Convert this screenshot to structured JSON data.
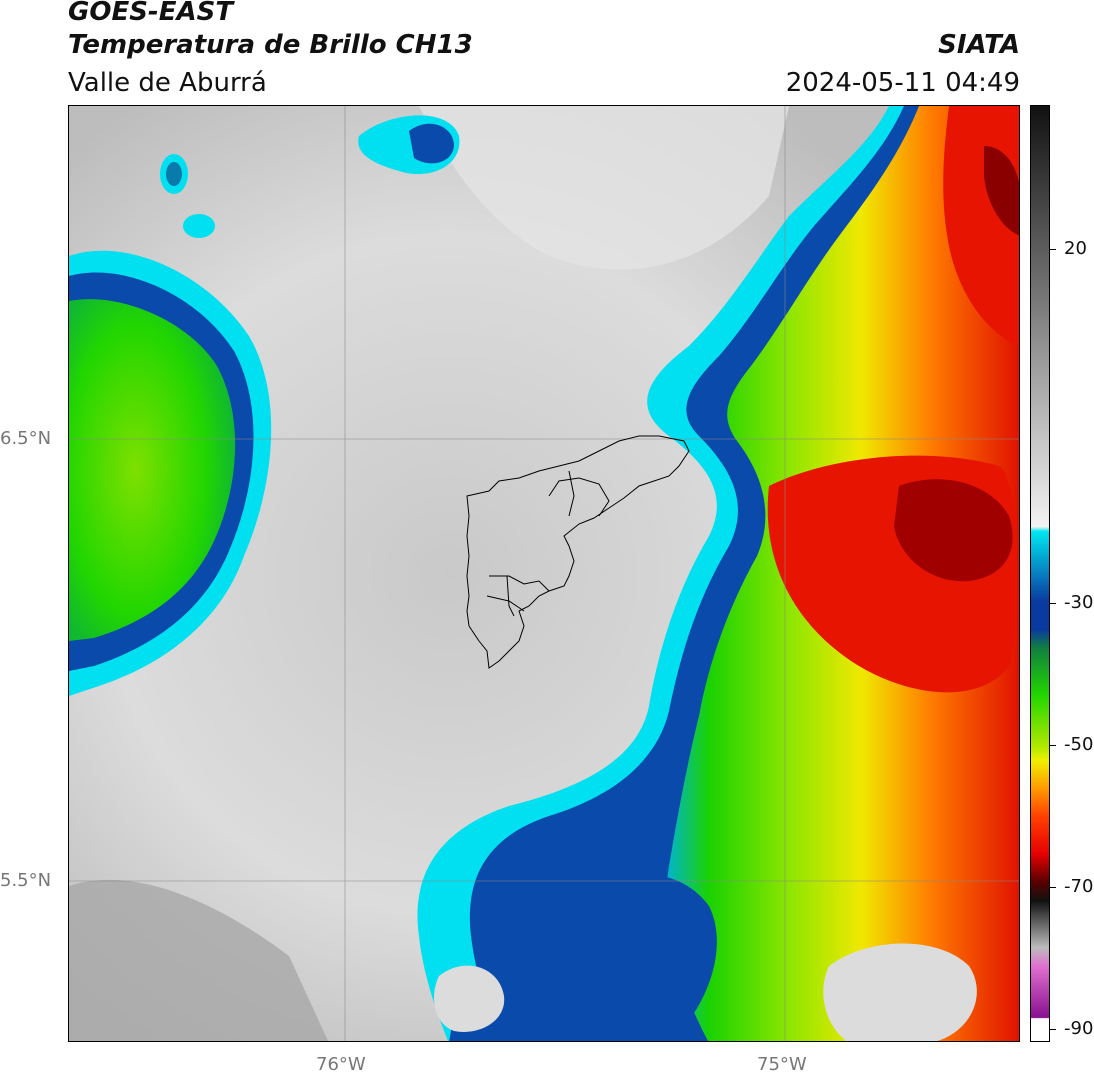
{
  "header": {
    "satellite": "GOES-EAST",
    "product": "Temperatura de Brillo CH13",
    "region": "Valle de Aburrá",
    "agency": "SIATA",
    "datetime": "2024-05-11 04:49"
  },
  "map": {
    "lat_labels": [
      "6.5°N",
      "5.5°N"
    ],
    "lon_labels": [
      "76°W",
      "75°W"
    ]
  },
  "colorbar": {
    "ticks": [
      "20",
      "-30",
      "-50",
      "-70",
      "-90"
    ],
    "colors": {
      "warm_gray": "#d8d8d8",
      "cyan": "#00e6f0",
      "blue": "#0a3aa0",
      "green": "#22d600",
      "yellow": "#f0f000",
      "orange": "#ff7a00",
      "red": "#e60000",
      "dark_red": "#8a0000",
      "magenta": "#d040c0"
    }
  }
}
